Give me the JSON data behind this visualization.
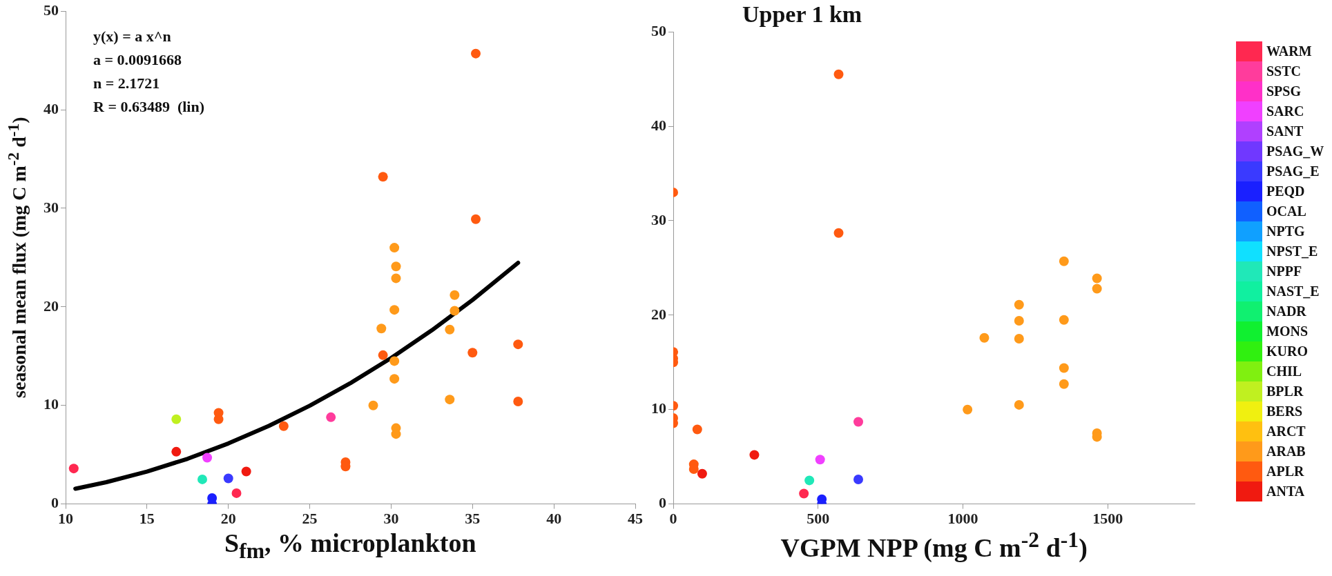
{
  "chart_data": [
    {
      "type": "scatter",
      "xlabel": "S$_{fm}$, % microplankton",
      "ylabel": "seasonal mean flux (mg C m$^{-2}$ d$^{-1}$)",
      "xlim": [
        10,
        45
      ],
      "xticks": [
        10,
        15,
        20,
        25,
        30,
        35,
        40,
        45
      ],
      "ylim": [
        0,
        50
      ],
      "yticks": [
        0,
        10,
        20,
        30,
        40,
        50
      ],
      "grid": false,
      "marker": "circle",
      "annotations": [
        "y(x) = a x^n",
        "a = 0.0091668",
        "n = 2.1721",
        "R = 0.63489  (lin)"
      ],
      "series": [
        {
          "color": "#ff2850",
          "x": [
            10.5,
            20.5
          ],
          "values": [
            3.6,
            1.1
          ]
        },
        {
          "color": "#ff3c9c",
          "x": [
            26.3
          ],
          "values": [
            8.8
          ]
        },
        {
          "color": "#f040ff",
          "x": [
            18.7
          ],
          "values": [
            4.7
          ]
        },
        {
          "color": "#3a3aff",
          "x": [
            20.0
          ],
          "values": [
            2.6
          ]
        },
        {
          "color": "#1a20ff",
          "x": [
            19.0,
            19.0
          ],
          "values": [
            0.6,
            0.0
          ]
        },
        {
          "color": "#20e8b8",
          "x": [
            18.4
          ],
          "values": [
            2.5
          ]
        },
        {
          "color": "#c0f020",
          "x": [
            16.8
          ],
          "values": [
            8.6
          ]
        },
        {
          "color": "#ff9a1a",
          "x": [
            28.9,
            29.4,
            30.2,
            30.3,
            30.3,
            30.2,
            30.2,
            30.2,
            30.3,
            30.3,
            33.6,
            33.9,
            33.9,
            33.6
          ],
          "values": [
            10.0,
            17.8,
            26.0,
            24.1,
            22.9,
            19.7,
            14.5,
            12.7,
            7.7,
            7.1,
            17.7,
            21.2,
            19.6,
            10.6
          ]
        },
        {
          "color": "#ff5a10",
          "x": [
            19.4,
            19.4,
            23.4,
            27.2,
            27.2,
            29.5,
            29.5,
            35.2,
            35.2,
            35.0,
            37.8,
            37.8
          ],
          "values": [
            9.25,
            8.6,
            7.9,
            4.25,
            3.8,
            33.2,
            15.1,
            45.7,
            28.9,
            15.35,
            16.2,
            10.4
          ]
        },
        {
          "color": "#f01a10",
          "x": [
            16.8,
            21.1
          ],
          "values": [
            5.3,
            3.3
          ]
        },
        {
          "type": "line",
          "marker": "none",
          "color": "#000000",
          "x": [
            10.6,
            12.5,
            15,
            17.5,
            20,
            22.5,
            25,
            27.5,
            30,
            32.5,
            35,
            37.8
          ],
          "values": [
            1.55,
            2.21,
            3.29,
            4.59,
            6.14,
            7.93,
            9.97,
            12.26,
            14.81,
            17.62,
            20.7,
            24.47
          ]
        }
      ]
    },
    {
      "type": "scatter",
      "title": "Upper 1 km",
      "xlabel": "VGPM NPP (mg C m$^{-2}$ d$^{-1}$)",
      "xlim": [
        0,
        1800
      ],
      "xticks": [
        0,
        500,
        1000,
        1500
      ],
      "ylim": [
        0,
        50
      ],
      "yticks": [
        0,
        10,
        20,
        30,
        40,
        50
      ],
      "grid": false,
      "marker": "circle",
      "legend": "right",
      "series": [
        {
          "name": "WARM",
          "color": "#ff2850",
          "x": [
            451
          ],
          "values": [
            1.1
          ]
        },
        {
          "name": "SSTC",
          "color": "#ff3c9c",
          "x": [
            639
          ],
          "values": [
            8.7
          ]
        },
        {
          "name": "SPSG",
          "color": "#ff30c8"
        },
        {
          "name": "SARC",
          "color": "#f040ff",
          "x": [
            507
          ],
          "values": [
            4.7
          ]
        },
        {
          "name": "SANT",
          "color": "#b040ff"
        },
        {
          "name": "PSAG_W",
          "color": "#7038ff"
        },
        {
          "name": "PSAG_E",
          "color": "#3a3aff",
          "x": [
            639
          ],
          "values": [
            2.6
          ]
        },
        {
          "name": "PEQD",
          "color": "#1a20ff",
          "x": [
            513,
            513
          ],
          "values": [
            0.5,
            0.0
          ]
        },
        {
          "name": "OCAL",
          "color": "#1060ff"
        },
        {
          "name": "NPTG",
          "color": "#10a0ff"
        },
        {
          "name": "NPST_E",
          "color": "#10e0ff"
        },
        {
          "name": "NPPF",
          "color": "#20e8b8",
          "x": [
            470
          ],
          "values": [
            2.5
          ]
        },
        {
          "name": "NAST_E",
          "color": "#10f0a0"
        },
        {
          "name": "NADR",
          "color": "#10f070"
        },
        {
          "name": "MONS",
          "color": "#10f030"
        },
        {
          "name": "KURO",
          "color": "#30f010"
        },
        {
          "name": "CHIL",
          "color": "#80f010"
        },
        {
          "name": "BPLR",
          "color": "#c0f020"
        },
        {
          "name": "BERS",
          "color": "#f0f010"
        },
        {
          "name": "ARCT",
          "color": "#ffc010"
        },
        {
          "name": "ARAB",
          "color": "#ff9a1a",
          "x": [
            1349,
            1463,
            1463,
            1194,
            1194,
            1349,
            1074,
            1194,
            1349,
            1349,
            1016,
            1194,
            1463,
            1463
          ],
          "values": [
            25.7,
            23.9,
            22.8,
            21.1,
            19.4,
            19.5,
            17.6,
            17.5,
            14.4,
            12.7,
            10.0,
            10.5,
            7.5,
            7.1
          ]
        },
        {
          "name": "APLR",
          "color": "#ff5a10",
          "x": [
            571,
            571,
            0,
            0,
            0,
            0,
            0,
            0,
            0,
            83,
            71,
            71
          ],
          "values": [
            45.5,
            28.7,
            33.0,
            16.1,
            15.4,
            15.0,
            10.4,
            9.1,
            8.55,
            7.9,
            4.2,
            3.7
          ]
        },
        {
          "name": "ANTA",
          "color": "#f01a10",
          "x": [
            100,
            280
          ],
          "values": [
            3.2,
            5.2
          ]
        }
      ]
    }
  ]
}
